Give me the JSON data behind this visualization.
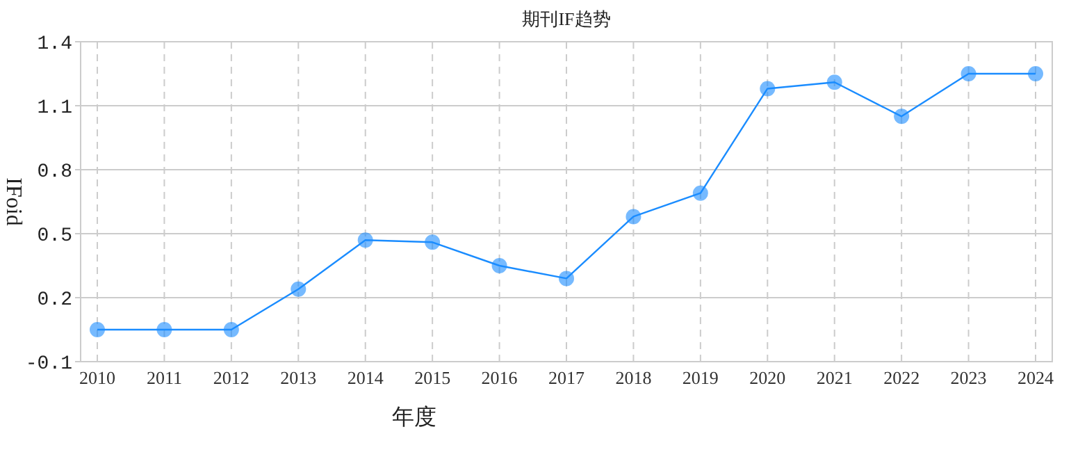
{
  "chart_data": {
    "type": "line",
    "title": "期刊IF趋势",
    "xlabel": "年度",
    "ylabel": "IFoid",
    "categories": [
      "2010",
      "2011",
      "2012",
      "2013",
      "2014",
      "2015",
      "2016",
      "2017",
      "2018",
      "2019",
      "2020",
      "2021",
      "2022",
      "2023",
      "2024"
    ],
    "series": [
      {
        "color": "#1a8cff",
        "values": [
          0.05,
          0.05,
          0.05,
          0.24,
          0.47,
          0.46,
          0.35,
          0.29,
          0.58,
          0.69,
          1.18,
          1.21,
          1.05,
          1.25,
          1.25
        ]
      }
    ],
    "ylim": [
      -0.1,
      1.4
    ],
    "yticks": [
      -0.1,
      0.2,
      0.5,
      0.8,
      1.1,
      1.4
    ],
    "grid": true,
    "marker": "circle",
    "line_style": "solid"
  }
}
